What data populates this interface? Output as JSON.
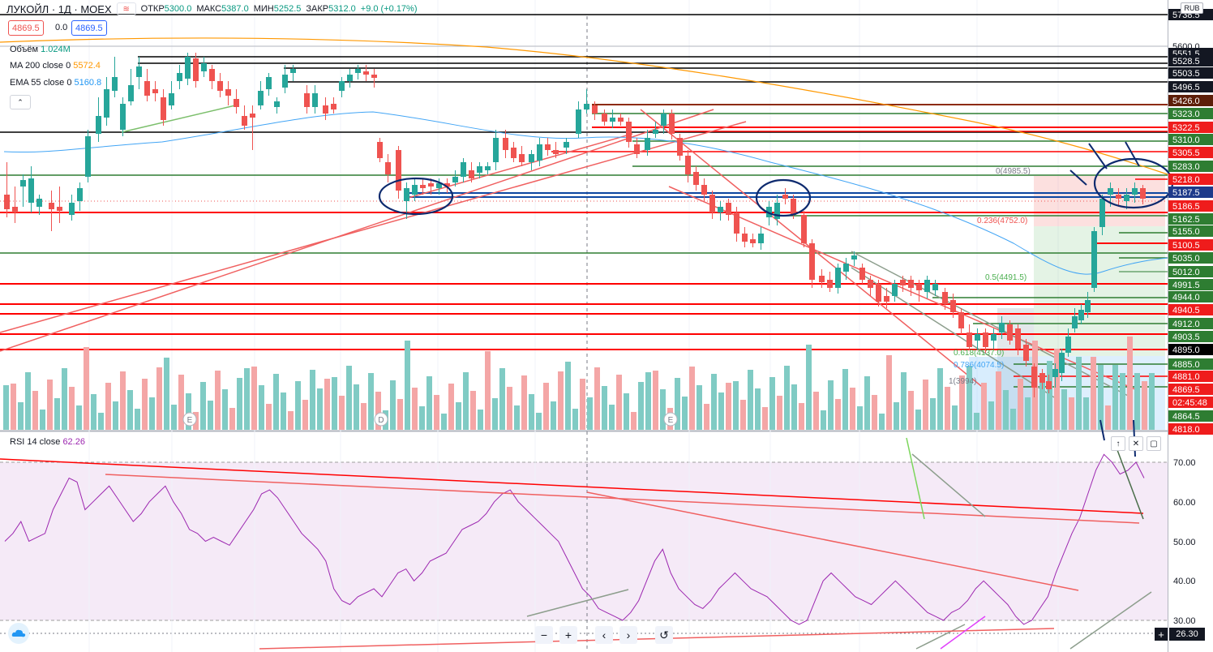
{
  "header": {
    "symbol": "ЛУКОЙЛ · 1Д · MOEX",
    "open_key": "ОТКР",
    "open_val": "5300.0",
    "high_key": "МАКС",
    "high_val": "5387.0",
    "low_key": "МИН",
    "low_val": "5252.5",
    "close_key": "ЗАКР",
    "close_val": "5312.0",
    "change": "+9.0 (+0.17%)"
  },
  "quote": {
    "bid": "4869.5",
    "spread": "0.0",
    "ask": "4869.5"
  },
  "indicators": {
    "volume_label": "Объём",
    "volume_value": "1.024M",
    "ma_label": "MA 200 close 0",
    "ma_value": "5572.4",
    "ema_label": "EMA 55 close 0",
    "ema_value": "5160.8"
  },
  "currency": "RUB",
  "rsi": {
    "label": "RSI 14 close",
    "value": "62.26",
    "cross_value": "26.30"
  },
  "colors": {
    "up": "#26a69a",
    "down": "#ef5350",
    "ma200": "#ff9800",
    "ema55": "#42a5f5",
    "rsi": "#9c27b0",
    "level_red": "#ff0000",
    "level_green": "#4caf50",
    "level_black": "#000000"
  },
  "price_axis_labels": [
    {
      "text": "5738.5",
      "style": "black"
    },
    {
      "text": "5600.0",
      "style": "plain"
    },
    {
      "text": "5551.5",
      "style": "black"
    },
    {
      "text": "5528.5",
      "style": "black"
    },
    {
      "text": "5503.5",
      "style": "black"
    },
    {
      "text": "5496.5",
      "style": "black"
    },
    {
      "text": "5426.0",
      "style": "brown"
    },
    {
      "text": "5323.0",
      "style": "green"
    },
    {
      "text": "5322.5",
      "style": "red"
    },
    {
      "text": "5310.0",
      "style": "green"
    },
    {
      "text": "5305.5",
      "style": "red"
    },
    {
      "text": "5283.0",
      "style": "green"
    },
    {
      "text": "5218.0",
      "style": "red"
    },
    {
      "text": "5187.5",
      "style": "blue"
    },
    {
      "text": "5186.5",
      "style": "red"
    },
    {
      "text": "5162.5",
      "style": "green"
    },
    {
      "text": "5155.0",
      "style": "green"
    },
    {
      "text": "5100.5",
      "style": "red"
    },
    {
      "text": "5035.0",
      "style": "green"
    },
    {
      "text": "5012.0",
      "style": "green"
    },
    {
      "text": "4991.5",
      "style": "green"
    },
    {
      "text": "4944.0",
      "style": "green"
    },
    {
      "text": "4940.5",
      "style": "red"
    },
    {
      "text": "4912.0",
      "style": "green"
    },
    {
      "text": "4903.5",
      "style": "green"
    },
    {
      "text": "4895.0",
      "style": "dark"
    },
    {
      "text": "4885.0",
      "style": "green"
    },
    {
      "text": "4881.0",
      "style": "red"
    },
    {
      "text": "4869.5",
      "style": "red"
    },
    {
      "text": "02:45:48",
      "style": "red"
    },
    {
      "text": "4864.5",
      "style": "green"
    },
    {
      "text": "4818.0",
      "style": "red"
    }
  ],
  "fib_labels": [
    {
      "text": "0(4985.5)",
      "color": "#787b86"
    },
    {
      "text": "0.236(4752.0)",
      "color": "#ef5350"
    },
    {
      "text": "0.5(4491.5)",
      "color": "#4caf50"
    },
    {
      "text": "0.618(4137.0)",
      "color": "#4caf50"
    },
    {
      "text": "0.786(4074.5)",
      "color": "#42a5f5"
    },
    {
      "text": "1(3994)",
      "color": "#787b86"
    }
  ],
  "rsi_axis": [
    "70.00",
    "60.00",
    "50.00",
    "40.00",
    "30.00"
  ],
  "event_markers": [
    "E",
    "D",
    "E"
  ],
  "toolbar": {
    "minus": "−",
    "plus": "+",
    "prev": "‹",
    "next": "›",
    "reset": "↺"
  }
}
